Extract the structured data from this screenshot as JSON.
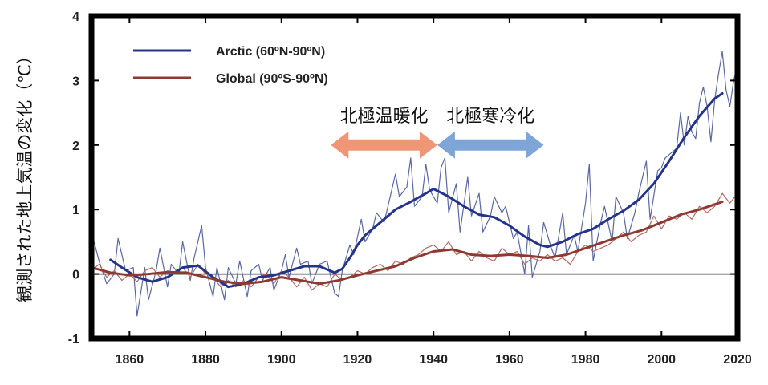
{
  "chart_data": {
    "type": "line",
    "ylabel": "観測された地上気温の変化（℃）",
    "xlabel": "",
    "xlim": [
      1850,
      2020
    ],
    "ylim": [
      -1,
      4
    ],
    "x_ticks": [
      1860,
      1880,
      1900,
      1920,
      1940,
      1960,
      1980,
      2000,
      2020
    ],
    "y_ticks": [
      -1,
      0,
      1,
      2,
      3,
      4
    ],
    "x_tick_labels": [
      "1860",
      "1880",
      "1900",
      "1920",
      "1940",
      "1960",
      "1980",
      "2000",
      "2020"
    ],
    "y_tick_labels": [
      "-1",
      "0",
      "1",
      "2",
      "3",
      "4"
    ],
    "zero_line": true,
    "legend_position": "top-left",
    "series": [
      {
        "name": "Arctic (60ºN-90ºN)",
        "color": "#24348a",
        "annual_color": "#5a66a8",
        "smoothed": [
          [
            1855,
            0.22
          ],
          [
            1858,
            0.1
          ],
          [
            1862,
            -0.05
          ],
          [
            1866,
            -0.12
          ],
          [
            1870,
            -0.05
          ],
          [
            1874,
            0.1
          ],
          [
            1878,
            0.13
          ],
          [
            1882,
            -0.05
          ],
          [
            1886,
            -0.2
          ],
          [
            1890,
            -0.15
          ],
          [
            1894,
            -0.05
          ],
          [
            1898,
            -0.02
          ],
          [
            1902,
            0.05
          ],
          [
            1906,
            0.12
          ],
          [
            1910,
            0.12
          ],
          [
            1914,
            0.02
          ],
          [
            1916,
            0.08
          ],
          [
            1918,
            0.25
          ],
          [
            1920,
            0.45
          ],
          [
            1922,
            0.6
          ],
          [
            1926,
            0.8
          ],
          [
            1930,
            1.0
          ],
          [
            1934,
            1.12
          ],
          [
            1938,
            1.25
          ],
          [
            1940,
            1.32
          ],
          [
            1944,
            1.2
          ],
          [
            1948,
            1.05
          ],
          [
            1952,
            0.92
          ],
          [
            1956,
            0.88
          ],
          [
            1960,
            0.75
          ],
          [
            1964,
            0.58
          ],
          [
            1968,
            0.45
          ],
          [
            1970,
            0.42
          ],
          [
            1974,
            0.5
          ],
          [
            1978,
            0.62
          ],
          [
            1982,
            0.7
          ],
          [
            1986,
            0.85
          ],
          [
            1990,
            0.98
          ],
          [
            1994,
            1.15
          ],
          [
            1998,
            1.4
          ],
          [
            2002,
            1.75
          ],
          [
            2006,
            2.12
          ],
          [
            2010,
            2.45
          ],
          [
            2014,
            2.72
          ],
          [
            2016,
            2.8
          ]
        ],
        "annual": [
          [
            1850,
            0.65
          ],
          [
            1852,
            0.2
          ],
          [
            1854,
            -0.15
          ],
          [
            1856,
            0.0
          ],
          [
            1857,
            0.55
          ],
          [
            1859,
            0.05
          ],
          [
            1861,
            0.1
          ],
          [
            1862,
            -0.65
          ],
          [
            1864,
            0.1
          ],
          [
            1865,
            -0.4
          ],
          [
            1867,
            0.05
          ],
          [
            1868,
            0.4
          ],
          [
            1870,
            -0.2
          ],
          [
            1871,
            0.15
          ],
          [
            1873,
            0.0
          ],
          [
            1874,
            0.5
          ],
          [
            1876,
            -0.1
          ],
          [
            1877,
            0.25
          ],
          [
            1879,
            0.75
          ],
          [
            1880,
            0.1
          ],
          [
            1882,
            -0.35
          ],
          [
            1883,
            0.1
          ],
          [
            1885,
            -0.4
          ],
          [
            1886,
            0.1
          ],
          [
            1888,
            -0.15
          ],
          [
            1889,
            0.2
          ],
          [
            1891,
            -0.35
          ],
          [
            1892,
            0.05
          ],
          [
            1894,
            0.15
          ],
          [
            1895,
            -0.1
          ],
          [
            1897,
            0.1
          ],
          [
            1898,
            -0.25
          ],
          [
            1900,
            0.05
          ],
          [
            1901,
            0.3
          ],
          [
            1902,
            -0.05
          ],
          [
            1904,
            0.4
          ],
          [
            1905,
            0.15
          ],
          [
            1907,
            0.2
          ],
          [
            1908,
            -0.15
          ],
          [
            1910,
            0.15
          ],
          [
            1912,
            0.2
          ],
          [
            1914,
            -0.3
          ],
          [
            1915,
            -0.35
          ],
          [
            1916,
            0.05
          ],
          [
            1918,
            0.45
          ],
          [
            1919,
            0.3
          ],
          [
            1921,
            0.85
          ],
          [
            1922,
            0.5
          ],
          [
            1924,
            0.7
          ],
          [
            1925,
            0.95
          ],
          [
            1927,
            0.8
          ],
          [
            1928,
            1.05
          ],
          [
            1930,
            1.55
          ],
          [
            1931,
            1.2
          ],
          [
            1933,
            1.35
          ],
          [
            1934,
            1.8
          ],
          [
            1935,
            1.05
          ],
          [
            1937,
            1.2
          ],
          [
            1938,
            1.7
          ],
          [
            1939,
            1.3
          ],
          [
            1941,
            1.1
          ],
          [
            1942,
            1.65
          ],
          [
            1943,
            1.8
          ],
          [
            1944,
            0.95
          ],
          [
            1946,
            1.4
          ],
          [
            1947,
            0.65
          ],
          [
            1949,
            1.5
          ],
          [
            1950,
            0.9
          ],
          [
            1952,
            1.25
          ],
          [
            1953,
            0.65
          ],
          [
            1955,
            0.9
          ],
          [
            1956,
            1.2
          ],
          [
            1958,
            0.95
          ],
          [
            1959,
            1.05
          ],
          [
            1961,
            0.55
          ],
          [
            1962,
            0.65
          ],
          [
            1964,
            0.0
          ],
          [
            1965,
            0.75
          ],
          [
            1966,
            -0.05
          ],
          [
            1968,
            0.35
          ],
          [
            1969,
            0.8
          ],
          [
            1971,
            0.4
          ],
          [
            1972,
            0.25
          ],
          [
            1974,
            0.95
          ],
          [
            1975,
            0.3
          ],
          [
            1977,
            0.6
          ],
          [
            1978,
            0.35
          ],
          [
            1980,
            1.1
          ],
          [
            1981,
            1.7
          ],
          [
            1982,
            0.2
          ],
          [
            1984,
            0.8
          ],
          [
            1985,
            1.05
          ],
          [
            1987,
            0.5
          ],
          [
            1988,
            1.2
          ],
          [
            1990,
            0.95
          ],
          [
            1991,
            0.55
          ],
          [
            1993,
            0.95
          ],
          [
            1994,
            1.25
          ],
          [
            1996,
            1.75
          ],
          [
            1997,
            0.85
          ],
          [
            1999,
            1.6
          ],
          [
            2000,
            1.65
          ],
          [
            2001,
            1.8
          ],
          [
            2003,
            1.9
          ],
          [
            2004,
            1.95
          ],
          [
            2005,
            2.5
          ],
          [
            2006,
            2.0
          ],
          [
            2007,
            2.45
          ],
          [
            2008,
            2.2
          ],
          [
            2009,
            2.1
          ],
          [
            2010,
            2.65
          ],
          [
            2011,
            2.9
          ],
          [
            2012,
            2.6
          ],
          [
            2013,
            2.05
          ],
          [
            2014,
            2.7
          ],
          [
            2015,
            3.1
          ],
          [
            2016,
            3.45
          ],
          [
            2017,
            2.85
          ],
          [
            2018,
            2.6
          ],
          [
            2019,
            3.0
          ],
          [
            2020,
            3.25
          ]
        ]
      },
      {
        "name": "Global (90ºS-90ºN)",
        "color": "#8c3a32",
        "annual_color": "#b86860",
        "smoothed": [
          [
            1850,
            0.1
          ],
          [
            1855,
            0.02
          ],
          [
            1860,
            -0.02
          ],
          [
            1865,
            0.0
          ],
          [
            1870,
            0.03
          ],
          [
            1875,
            0.02
          ],
          [
            1880,
            -0.05
          ],
          [
            1885,
            -0.12
          ],
          [
            1890,
            -0.15
          ],
          [
            1895,
            -0.12
          ],
          [
            1900,
            -0.05
          ],
          [
            1905,
            -0.1
          ],
          [
            1910,
            -0.15
          ],
          [
            1915,
            -0.1
          ],
          [
            1920,
            -0.02
          ],
          [
            1925,
            0.05
          ],
          [
            1930,
            0.12
          ],
          [
            1935,
            0.25
          ],
          [
            1940,
            0.35
          ],
          [
            1945,
            0.38
          ],
          [
            1950,
            0.3
          ],
          [
            1955,
            0.28
          ],
          [
            1960,
            0.3
          ],
          [
            1965,
            0.28
          ],
          [
            1970,
            0.25
          ],
          [
            1975,
            0.3
          ],
          [
            1980,
            0.4
          ],
          [
            1985,
            0.5
          ],
          [
            1990,
            0.6
          ],
          [
            1995,
            0.68
          ],
          [
            2000,
            0.8
          ],
          [
            2005,
            0.92
          ],
          [
            2010,
            1.0
          ],
          [
            2016,
            1.12
          ]
        ],
        "annual": [
          [
            1850,
            0.05
          ],
          [
            1852,
            0.15
          ],
          [
            1854,
            -0.05
          ],
          [
            1856,
            0.05
          ],
          [
            1858,
            -0.1
          ],
          [
            1860,
            0.0
          ],
          [
            1862,
            -0.12
          ],
          [
            1864,
            0.05
          ],
          [
            1866,
            0.1
          ],
          [
            1868,
            -0.05
          ],
          [
            1870,
            0.05
          ],
          [
            1872,
            0.0
          ],
          [
            1874,
            0.1
          ],
          [
            1876,
            -0.05
          ],
          [
            1878,
            0.15
          ],
          [
            1880,
            0.0
          ],
          [
            1882,
            -0.05
          ],
          [
            1884,
            -0.2
          ],
          [
            1886,
            -0.1
          ],
          [
            1888,
            -0.2
          ],
          [
            1890,
            -0.1
          ],
          [
            1892,
            -0.2
          ],
          [
            1894,
            -0.05
          ],
          [
            1896,
            0.0
          ],
          [
            1898,
            -0.15
          ],
          [
            1900,
            0.05
          ],
          [
            1902,
            -0.05
          ],
          [
            1904,
            -0.2
          ],
          [
            1906,
            -0.05
          ],
          [
            1908,
            -0.25
          ],
          [
            1910,
            -0.15
          ],
          [
            1912,
            -0.2
          ],
          [
            1914,
            0.0
          ],
          [
            1916,
            -0.1
          ],
          [
            1918,
            -0.05
          ],
          [
            1920,
            0.05
          ],
          [
            1922,
            0.0
          ],
          [
            1924,
            0.1
          ],
          [
            1926,
            0.15
          ],
          [
            1928,
            0.05
          ],
          [
            1930,
            0.2
          ],
          [
            1932,
            0.15
          ],
          [
            1934,
            0.25
          ],
          [
            1936,
            0.3
          ],
          [
            1938,
            0.4
          ],
          [
            1940,
            0.45
          ],
          [
            1942,
            0.35
          ],
          [
            1944,
            0.5
          ],
          [
            1946,
            0.3
          ],
          [
            1948,
            0.35
          ],
          [
            1950,
            0.2
          ],
          [
            1952,
            0.35
          ],
          [
            1954,
            0.25
          ],
          [
            1956,
            0.2
          ],
          [
            1958,
            0.4
          ],
          [
            1960,
            0.3
          ],
          [
            1962,
            0.35
          ],
          [
            1964,
            0.15
          ],
          [
            1966,
            0.25
          ],
          [
            1968,
            0.2
          ],
          [
            1970,
            0.3
          ],
          [
            1972,
            0.2
          ],
          [
            1974,
            0.25
          ],
          [
            1976,
            0.15
          ],
          [
            1978,
            0.35
          ],
          [
            1980,
            0.45
          ],
          [
            1982,
            0.35
          ],
          [
            1984,
            0.4
          ],
          [
            1986,
            0.45
          ],
          [
            1988,
            0.55
          ],
          [
            1990,
            0.65
          ],
          [
            1992,
            0.5
          ],
          [
            1994,
            0.6
          ],
          [
            1996,
            0.65
          ],
          [
            1998,
            0.9
          ],
          [
            2000,
            0.7
          ],
          [
            2002,
            0.9
          ],
          [
            2004,
            0.85
          ],
          [
            2006,
            0.95
          ],
          [
            2008,
            0.85
          ],
          [
            2010,
            1.05
          ],
          [
            2012,
            0.95
          ],
          [
            2014,
            1.05
          ],
          [
            2016,
            1.25
          ],
          [
            2018,
            1.1
          ],
          [
            2020,
            1.25
          ]
        ]
      }
    ],
    "annotations": [
      {
        "text": "北極温暖化",
        "arrow_from": 1913,
        "arrow_to": 1941,
        "arrow_y": 2.0,
        "color": "#ef9677"
      },
      {
        "text": "北極寒冷化",
        "arrow_from": 1941,
        "arrow_to": 1969,
        "arrow_y": 2.0,
        "color": "#7ea5d8"
      }
    ]
  }
}
